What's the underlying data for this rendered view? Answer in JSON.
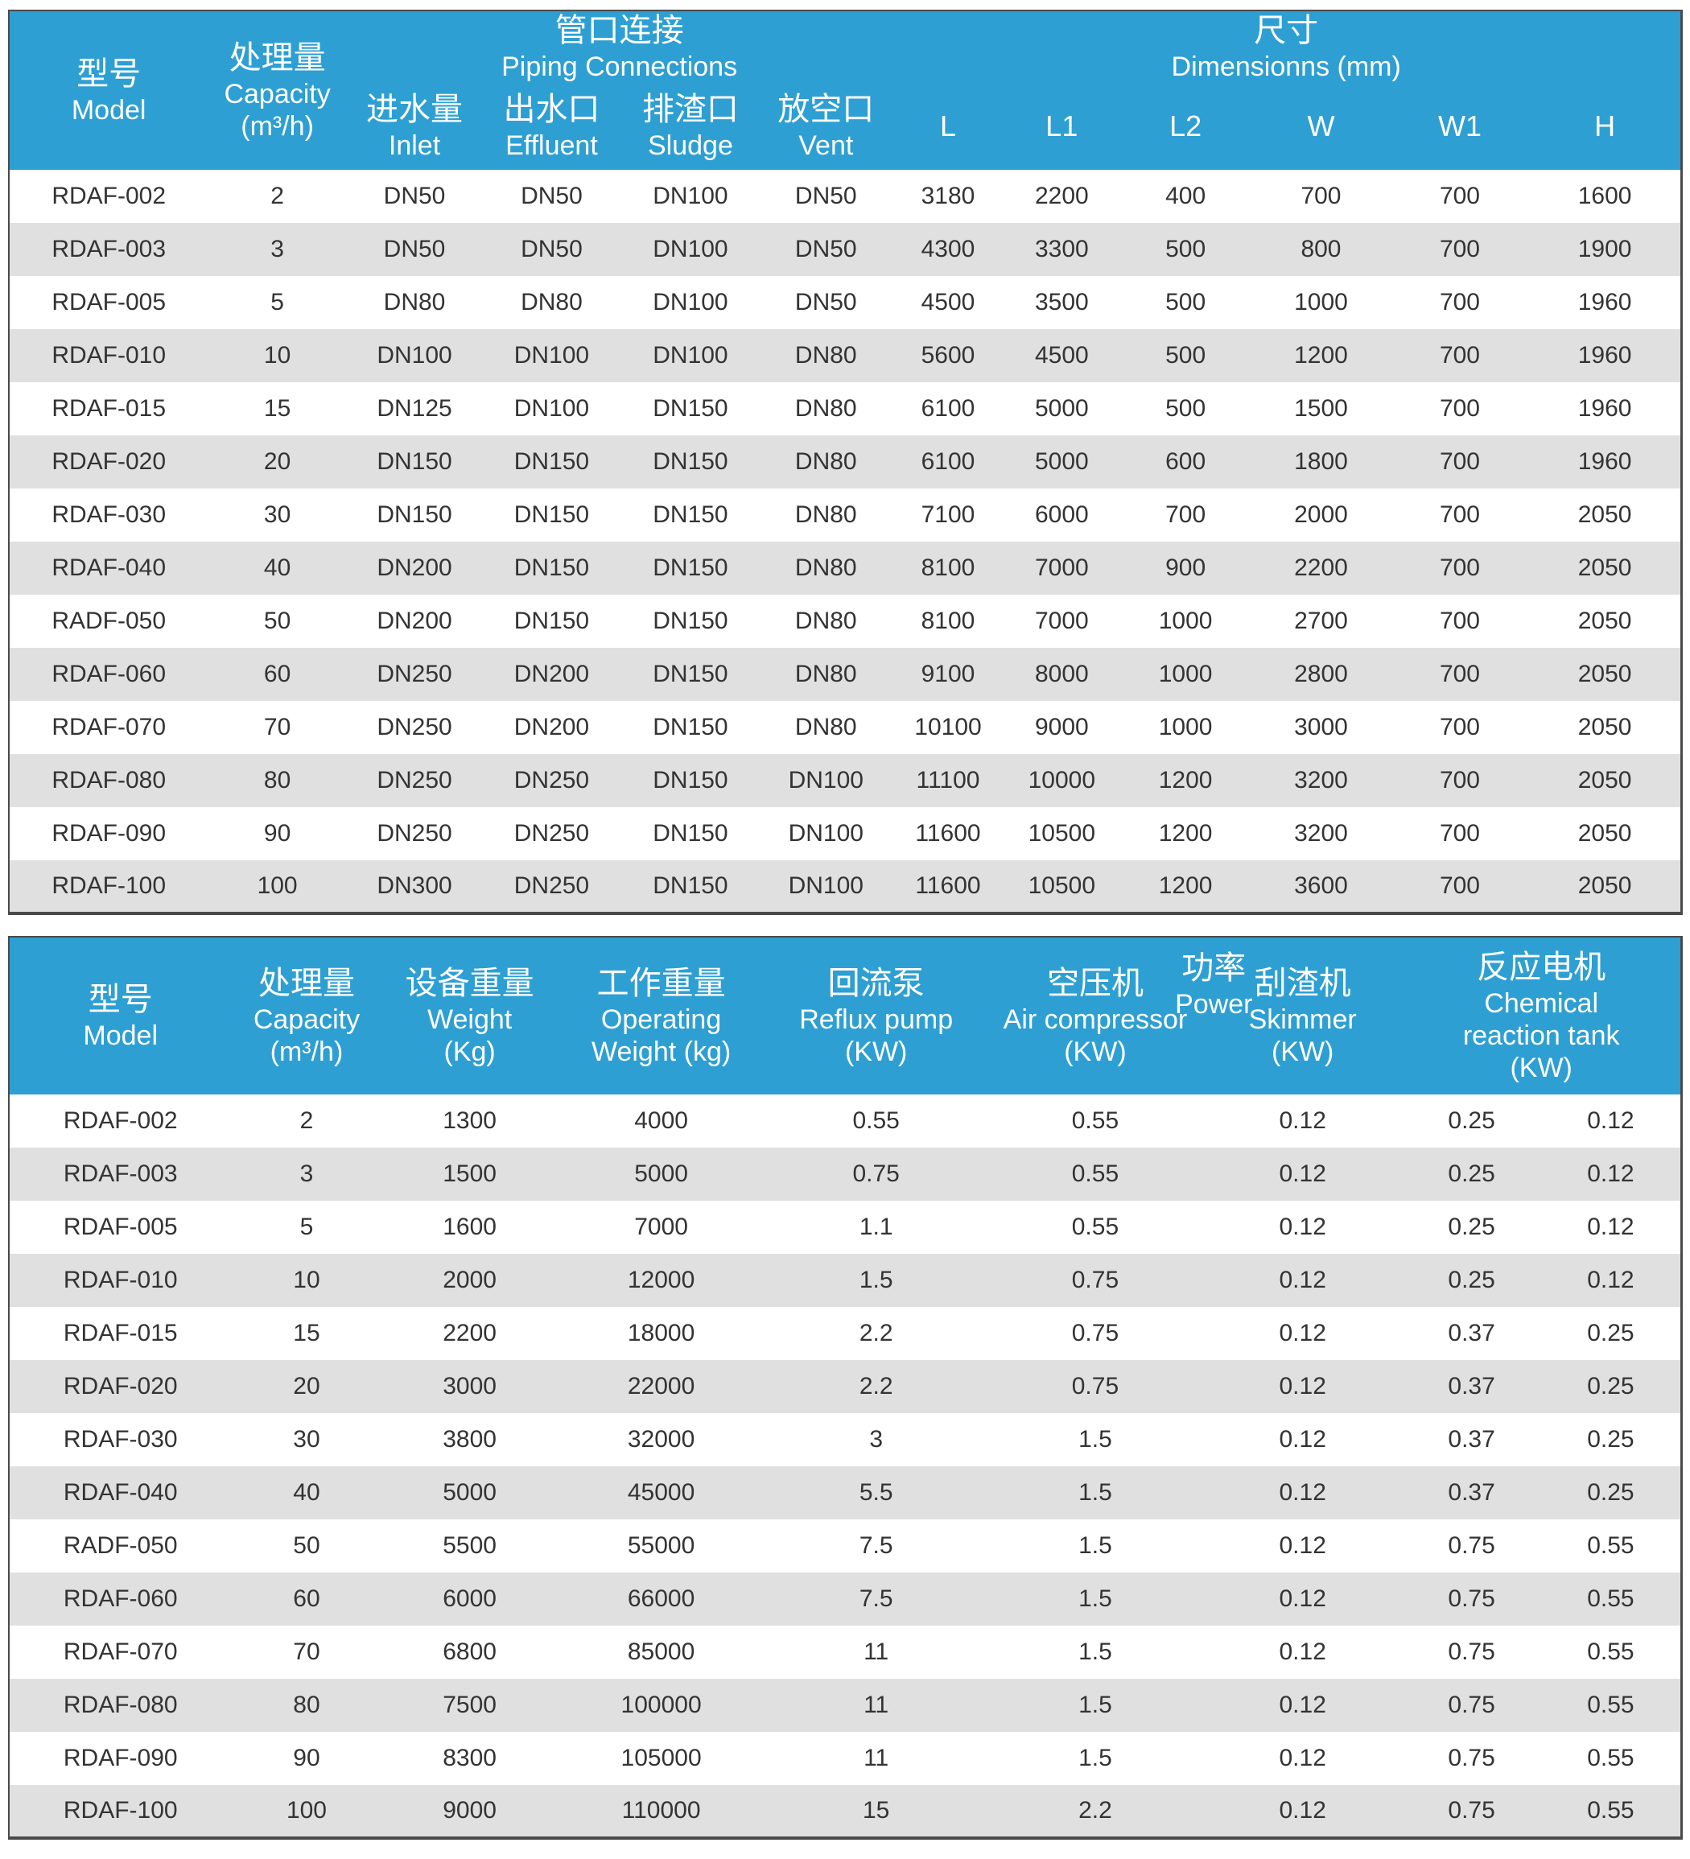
{
  "colors": {
    "header_blue": "#2e9fd2",
    "row_alt_gray": "#e0e0e0",
    "row_white": "#ffffff",
    "border_dark": "#4a4a4a",
    "body_text": "#333333",
    "header_text": "#ffffff"
  },
  "table1": {
    "headers": {
      "model": {
        "zh": "型号",
        "en": "Model"
      },
      "capacity": {
        "zh": "处理量",
        "en": "Capacity",
        "unit": "(m³/h)"
      },
      "piping_group": {
        "zh": "管口连接",
        "en": "Piping Connections"
      },
      "inlet": {
        "zh": "进水量",
        "en": "Inlet"
      },
      "effluent": {
        "zh": "出水口",
        "en": "Effluent"
      },
      "sludge": {
        "zh": "排渣口",
        "en": "Sludge"
      },
      "vent": {
        "zh": "放空口",
        "en": "Vent"
      },
      "dimensions_group": {
        "zh": "尺寸",
        "en": "Dimensionns (mm)"
      },
      "dims": [
        "L",
        "L1",
        "L2",
        "W",
        "W1",
        "H"
      ]
    },
    "rows": [
      [
        "RDAF-002",
        "2",
        "DN50",
        "DN50",
        "DN100",
        "DN50",
        "3180",
        "2200",
        "400",
        "700",
        "700",
        "1600"
      ],
      [
        "RDAF-003",
        "3",
        "DN50",
        "DN50",
        "DN100",
        "DN50",
        "4300",
        "3300",
        "500",
        "800",
        "700",
        "1900"
      ],
      [
        "RDAF-005",
        "5",
        "DN80",
        "DN80",
        "DN100",
        "DN50",
        "4500",
        "3500",
        "500",
        "1000",
        "700",
        "1960"
      ],
      [
        "RDAF-010",
        "10",
        "DN100",
        "DN100",
        "DN100",
        "DN80",
        "5600",
        "4500",
        "500",
        "1200",
        "700",
        "1960"
      ],
      [
        "RDAF-015",
        "15",
        "DN125",
        "DN100",
        "DN150",
        "DN80",
        "6100",
        "5000",
        "500",
        "1500",
        "700",
        "1960"
      ],
      [
        "RDAF-020",
        "20",
        "DN150",
        "DN150",
        "DN150",
        "DN80",
        "6100",
        "5000",
        "600",
        "1800",
        "700",
        "1960"
      ],
      [
        "RDAF-030",
        "30",
        "DN150",
        "DN150",
        "DN150",
        "DN80",
        "7100",
        "6000",
        "700",
        "2000",
        "700",
        "2050"
      ],
      [
        "RDAF-040",
        "40",
        "DN200",
        "DN150",
        "DN150",
        "DN80",
        "8100",
        "7000",
        "900",
        "2200",
        "700",
        "2050"
      ],
      [
        "RADF-050",
        "50",
        "DN200",
        "DN150",
        "DN150",
        "DN80",
        "8100",
        "7000",
        "1000",
        "2700",
        "700",
        "2050"
      ],
      [
        "RDAF-060",
        "60",
        "DN250",
        "DN200",
        "DN150",
        "DN80",
        "9100",
        "8000",
        "1000",
        "2800",
        "700",
        "2050"
      ],
      [
        "RDAF-070",
        "70",
        "DN250",
        "DN200",
        "DN150",
        "DN80",
        "10100",
        "9000",
        "1000",
        "3000",
        "700",
        "2050"
      ],
      [
        "RDAF-080",
        "80",
        "DN250",
        "DN250",
        "DN150",
        "DN100",
        "11100",
        "10000",
        "1200",
        "3200",
        "700",
        "2050"
      ],
      [
        "RDAF-090",
        "90",
        "DN250",
        "DN250",
        "DN150",
        "DN100",
        "11600",
        "10500",
        "1200",
        "3200",
        "700",
        "2050"
      ],
      [
        "RDAF-100",
        "100",
        "DN300",
        "DN250",
        "DN150",
        "DN100",
        "11600",
        "10500",
        "1200",
        "3600",
        "700",
        "2050"
      ]
    ]
  },
  "table2": {
    "headers": {
      "model": {
        "zh": "型号",
        "en": "Model"
      },
      "capacity": {
        "zh": "处理量",
        "en": "Capacity",
        "unit": "(m³/h)"
      },
      "weight": {
        "zh": "设备重量",
        "en": "Weight",
        "unit": "(Kg)"
      },
      "operating_weight": {
        "zh": "工作重量",
        "en": "Operating",
        "unit": "Weight (kg)"
      },
      "reflux_pump": {
        "zh": "回流泵",
        "en": "Reflux pump",
        "unit": "(KW)"
      },
      "air_compressor": {
        "zh": "空压机",
        "en": "Air compressor",
        "unit": "(KW)"
      },
      "power_group": {
        "zh": "功率",
        "en": "Power"
      },
      "skimmer": {
        "zh": "刮渣机",
        "en": "Skimmer",
        "unit": "(KW)"
      },
      "chemical_tank": {
        "zh": "反应电机",
        "en": "Chemical",
        "en2": "reaction tank",
        "unit": "(KW)"
      }
    },
    "rows": [
      [
        "RDAF-002",
        "2",
        "1300",
        "4000",
        "0.55",
        "0.55",
        "0.12",
        "0.25",
        "0.12"
      ],
      [
        "RDAF-003",
        "3",
        "1500",
        "5000",
        "0.75",
        "0.55",
        "0.12",
        "0.25",
        "0.12"
      ],
      [
        "RDAF-005",
        "5",
        "1600",
        "7000",
        "1.1",
        "0.55",
        "0.12",
        "0.25",
        "0.12"
      ],
      [
        "RDAF-010",
        "10",
        "2000",
        "12000",
        "1.5",
        "0.75",
        "0.12",
        "0.25",
        "0.12"
      ],
      [
        "RDAF-015",
        "15",
        "2200",
        "18000",
        "2.2",
        "0.75",
        "0.12",
        "0.37",
        "0.25"
      ],
      [
        "RDAF-020",
        "20",
        "3000",
        "22000",
        "2.2",
        "0.75",
        "0.12",
        "0.37",
        "0.25"
      ],
      [
        "RDAF-030",
        "30",
        "3800",
        "32000",
        "3",
        "1.5",
        "0.12",
        "0.37",
        "0.25"
      ],
      [
        "RDAF-040",
        "40",
        "5000",
        "45000",
        "5.5",
        "1.5",
        "0.12",
        "0.37",
        "0.25"
      ],
      [
        "RADF-050",
        "50",
        "5500",
        "55000",
        "7.5",
        "1.5",
        "0.12",
        "0.75",
        "0.55"
      ],
      [
        "RDAF-060",
        "60",
        "6000",
        "66000",
        "7.5",
        "1.5",
        "0.12",
        "0.75",
        "0.55"
      ],
      [
        "RDAF-070",
        "70",
        "6800",
        "85000",
        "11",
        "1.5",
        "0.12",
        "0.75",
        "0.55"
      ],
      [
        "RDAF-080",
        "80",
        "7500",
        "100000",
        "11",
        "1.5",
        "0.12",
        "0.75",
        "0.55"
      ],
      [
        "RDAF-090",
        "90",
        "8300",
        "105000",
        "11",
        "1.5",
        "0.12",
        "0.75",
        "0.55"
      ],
      [
        "RDAF-100",
        "100",
        "9000",
        "110000",
        "15",
        "2.2",
        "0.12",
        "0.75",
        "0.55"
      ]
    ]
  }
}
